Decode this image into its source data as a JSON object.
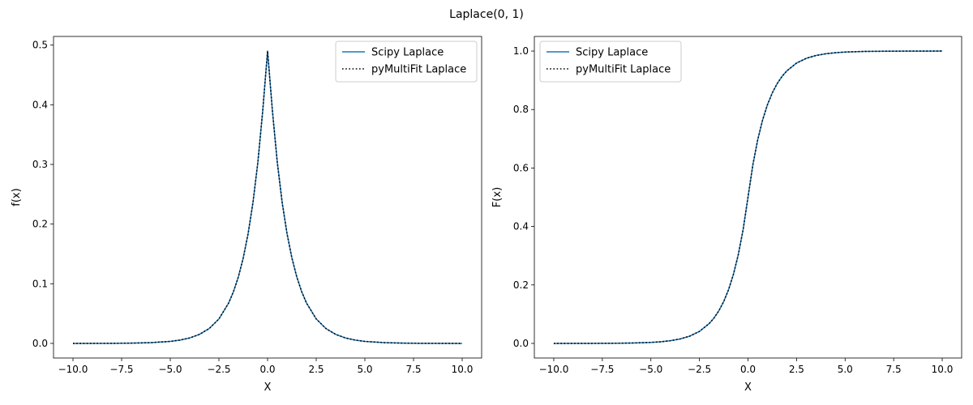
{
  "figure": {
    "suptitle": "Laplace(0, 1)"
  },
  "chart_data": [
    {
      "type": "line",
      "title": "",
      "xlabel": "X",
      "ylabel": "f(x)",
      "xlim": [
        -11.0,
        11.0
      ],
      "ylim": [
        -0.0245,
        0.5145
      ],
      "xticks": [
        -10.0,
        -7.5,
        -5.0,
        -2.5,
        0.0,
        2.5,
        5.0,
        7.5,
        10.0
      ],
      "xtick_labels": [
        "−10.0",
        "−7.5",
        "−5.0",
        "−2.5",
        "0.0",
        "2.5",
        "5.0",
        "7.5",
        "10.0"
      ],
      "yticks": [
        0.0,
        0.1,
        0.2,
        0.3,
        0.4,
        0.5
      ],
      "ytick_labels": [
        "0.0",
        "0.1",
        "0.2",
        "0.3",
        "0.4",
        "0.5"
      ],
      "grid": false,
      "legend_position": "upper right",
      "x": [
        -10,
        -9,
        -8,
        -7,
        -6,
        -5,
        -4.5,
        -4,
        -3.5,
        -3,
        -2.5,
        -2,
        -1.75,
        -1.5,
        -1.25,
        -1,
        -0.75,
        -0.5,
        -0.25,
        0,
        0.25,
        0.5,
        0.75,
        1,
        1.25,
        1.5,
        1.75,
        2,
        2.5,
        3,
        3.5,
        4,
        4.5,
        5,
        6,
        7,
        8,
        9,
        10
      ],
      "series": [
        {
          "name": "Scipy Laplace",
          "color": "#1f77b4",
          "style": "solid",
          "values": [
            2e-05,
            6e-05,
            0.00017,
            0.00046,
            0.00124,
            0.00337,
            0.00555,
            0.00916,
            0.0151,
            0.0249,
            0.041,
            0.0677,
            0.0869,
            0.1116,
            0.1433,
            0.1839,
            0.2362,
            0.3033,
            0.3894,
            0.49,
            0.3894,
            0.3033,
            0.2362,
            0.1839,
            0.1433,
            0.1116,
            0.0869,
            0.0677,
            0.041,
            0.0249,
            0.0151,
            0.00916,
            0.00555,
            0.00337,
            0.00124,
            0.00046,
            0.00017,
            6e-05,
            2e-05
          ]
        },
        {
          "name": "pyMultiFit Laplace",
          "color": "#000000",
          "style": "dotted",
          "values": [
            2e-05,
            6e-05,
            0.00017,
            0.00046,
            0.00124,
            0.00337,
            0.00555,
            0.00916,
            0.0151,
            0.0249,
            0.041,
            0.0677,
            0.0869,
            0.1116,
            0.1433,
            0.1839,
            0.2362,
            0.3033,
            0.3894,
            0.49,
            0.3894,
            0.3033,
            0.2362,
            0.1839,
            0.1433,
            0.1116,
            0.0869,
            0.0677,
            0.041,
            0.0249,
            0.0151,
            0.00916,
            0.00555,
            0.00337,
            0.00124,
            0.00046,
            0.00017,
            6e-05,
            2e-05
          ]
        }
      ]
    },
    {
      "type": "line",
      "title": "",
      "xlabel": "X",
      "ylabel": "F(x)",
      "xlim": [
        -11.0,
        11.0
      ],
      "ylim": [
        -0.05,
        1.05
      ],
      "xticks": [
        -10.0,
        -7.5,
        -5.0,
        -2.5,
        0.0,
        2.5,
        5.0,
        7.5,
        10.0
      ],
      "xtick_labels": [
        "−10.0",
        "−7.5",
        "−5.0",
        "−2.5",
        "0.0",
        "2.5",
        "5.0",
        "7.5",
        "10.0"
      ],
      "yticks": [
        0.0,
        0.2,
        0.4,
        0.6,
        0.8,
        1.0
      ],
      "ytick_labels": [
        "0.0",
        "0.2",
        "0.4",
        "0.6",
        "0.8",
        "1.0"
      ],
      "grid": false,
      "legend_position": "upper left",
      "x": [
        -10,
        -9,
        -8,
        -7,
        -6,
        -5,
        -4.5,
        -4,
        -3.5,
        -3,
        -2.5,
        -2,
        -1.75,
        -1.5,
        -1.25,
        -1,
        -0.75,
        -0.5,
        -0.25,
        0,
        0.25,
        0.5,
        0.75,
        1,
        1.25,
        1.5,
        1.75,
        2,
        2.5,
        3,
        3.5,
        4,
        4.5,
        5,
        6,
        7,
        8,
        9,
        10
      ],
      "series": [
        {
          "name": "Scipy Laplace",
          "color": "#1f77b4",
          "style": "solid",
          "values": [
            2e-05,
            6e-05,
            0.00017,
            0.00046,
            0.00124,
            0.00337,
            0.00555,
            0.00916,
            0.0151,
            0.0249,
            0.041,
            0.0677,
            0.0869,
            0.1116,
            0.1433,
            0.1839,
            0.2362,
            0.3033,
            0.3894,
            0.5,
            0.6106,
            0.6967,
            0.7638,
            0.8161,
            0.8567,
            0.8884,
            0.9131,
            0.9323,
            0.959,
            0.9751,
            0.9849,
            0.9908,
            0.9944,
            0.9966,
            0.9988,
            0.9995,
            0.9998,
            0.9999,
            1.0
          ]
        },
        {
          "name": "pyMultiFit Laplace",
          "color": "#000000",
          "style": "dotted",
          "values": [
            2e-05,
            6e-05,
            0.00017,
            0.00046,
            0.00124,
            0.00337,
            0.00555,
            0.00916,
            0.0151,
            0.0249,
            0.041,
            0.0677,
            0.0869,
            0.1116,
            0.1433,
            0.1839,
            0.2362,
            0.3033,
            0.3894,
            0.5,
            0.6106,
            0.6967,
            0.7638,
            0.8161,
            0.8567,
            0.8884,
            0.9131,
            0.9323,
            0.959,
            0.9751,
            0.9849,
            0.9908,
            0.9944,
            0.9966,
            0.9988,
            0.9995,
            0.9998,
            0.9999,
            1.0
          ]
        }
      ]
    }
  ]
}
